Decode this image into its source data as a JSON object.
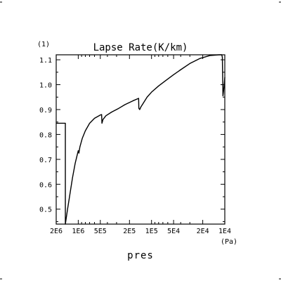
{
  "chart_data": {
    "type": "line",
    "title": "Lapse Rate(K/km)",
    "y_unit_label": "(1)",
    "x_unit_label": "(Pa)",
    "xlabel": "pres",
    "x_scale": "log",
    "x_reversed": true,
    "xlim": [
      2000000,
      10000
    ],
    "ylim": [
      0.44,
      1.12
    ],
    "x_tick_labels": [
      {
        "value": 2000000,
        "label": "2E6"
      },
      {
        "value": 1000000,
        "label": "1E6"
      },
      {
        "value": 500000,
        "label": "5E5"
      },
      {
        "value": 200000,
        "label": "2E5"
      },
      {
        "value": 100000,
        "label": "1E5"
      },
      {
        "value": 50000,
        "label": "5E4"
      },
      {
        "value": 20000,
        "label": "2E4"
      },
      {
        "value": 10000,
        "label": "1E4"
      }
    ],
    "y_ticks": [
      0.5,
      0.6,
      0.7,
      0.8,
      0.9,
      1.0,
      1.1
    ],
    "y_tick_labels": [
      "0.5",
      "0.6",
      "0.7",
      "0.8",
      "0.9",
      "1.0",
      "1.1"
    ],
    "grid": false,
    "series": [
      {
        "color": "#000000",
        "points": [
          [
            2000000,
            0.845
          ],
          [
            1600000,
            0.845
          ],
          [
            1500000,
            0.845
          ],
          [
            1500000,
            0.44
          ],
          [
            1400000,
            0.5
          ],
          [
            1300000,
            0.56
          ],
          [
            1200000,
            0.625
          ],
          [
            1100000,
            0.685
          ],
          [
            1000000,
            0.735
          ],
          [
            980000,
            0.725
          ],
          [
            950000,
            0.75
          ],
          [
            880000,
            0.785
          ],
          [
            800000,
            0.815
          ],
          [
            700000,
            0.845
          ],
          [
            600000,
            0.865
          ],
          [
            500000,
            0.878
          ],
          [
            480000,
            0.88
          ],
          [
            475000,
            0.845
          ],
          [
            460000,
            0.86
          ],
          [
            420000,
            0.875
          ],
          [
            350000,
            0.89
          ],
          [
            280000,
            0.905
          ],
          [
            230000,
            0.92
          ],
          [
            180000,
            0.935
          ],
          [
            150000,
            0.945
          ],
          [
            149000,
            0.905
          ],
          [
            145000,
            0.9
          ],
          [
            140000,
            0.91
          ],
          [
            130000,
            0.925
          ],
          [
            115000,
            0.95
          ],
          [
            100000,
            0.97
          ],
          [
            80000,
            0.995
          ],
          [
            65000,
            1.015
          ],
          [
            50000,
            1.04
          ],
          [
            40000,
            1.06
          ],
          [
            30000,
            1.085
          ],
          [
            22000,
            1.105
          ],
          [
            16000,
            1.117
          ],
          [
            12000,
            1.12
          ],
          [
            11000,
            1.12
          ],
          [
            10800,
            1.11
          ],
          [
            10600,
            0.955
          ],
          [
            10300,
            0.985
          ],
          [
            10000,
            1.03
          ]
        ]
      }
    ]
  }
}
